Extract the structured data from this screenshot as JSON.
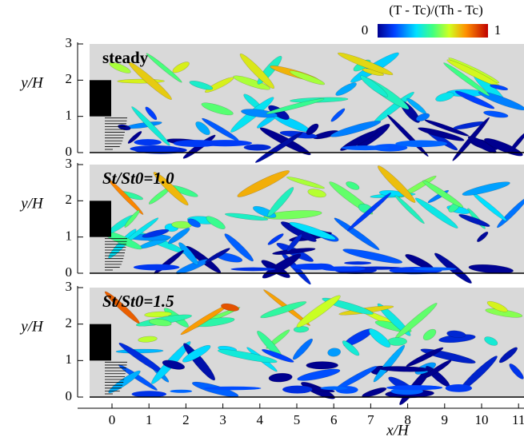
{
  "colorbar": {
    "title": "(T - Tc)/(Th - Tc)",
    "min_label": "0",
    "max_label": "1"
  },
  "panels": [
    {
      "label": "steady",
      "y_axis_label": "y/H",
      "y_tick_labels": [
        "0",
        "1",
        "2",
        "3"
      ]
    },
    {
      "label": "St/St0=1.0",
      "y_axis_label": "y/H",
      "y_tick_labels": [
        "0",
        "1",
        "2",
        "3"
      ]
    },
    {
      "label": "St/St0=1.5",
      "y_axis_label": "y/H",
      "y_tick_labels": [
        "0",
        "1",
        "2",
        "3"
      ]
    }
  ],
  "x_axis": {
    "label": "x/H",
    "tick_labels": [
      "0",
      "1",
      "2",
      "3",
      "4",
      "5",
      "6",
      "7",
      "8",
      "9",
      "10",
      "11"
    ]
  }
}
